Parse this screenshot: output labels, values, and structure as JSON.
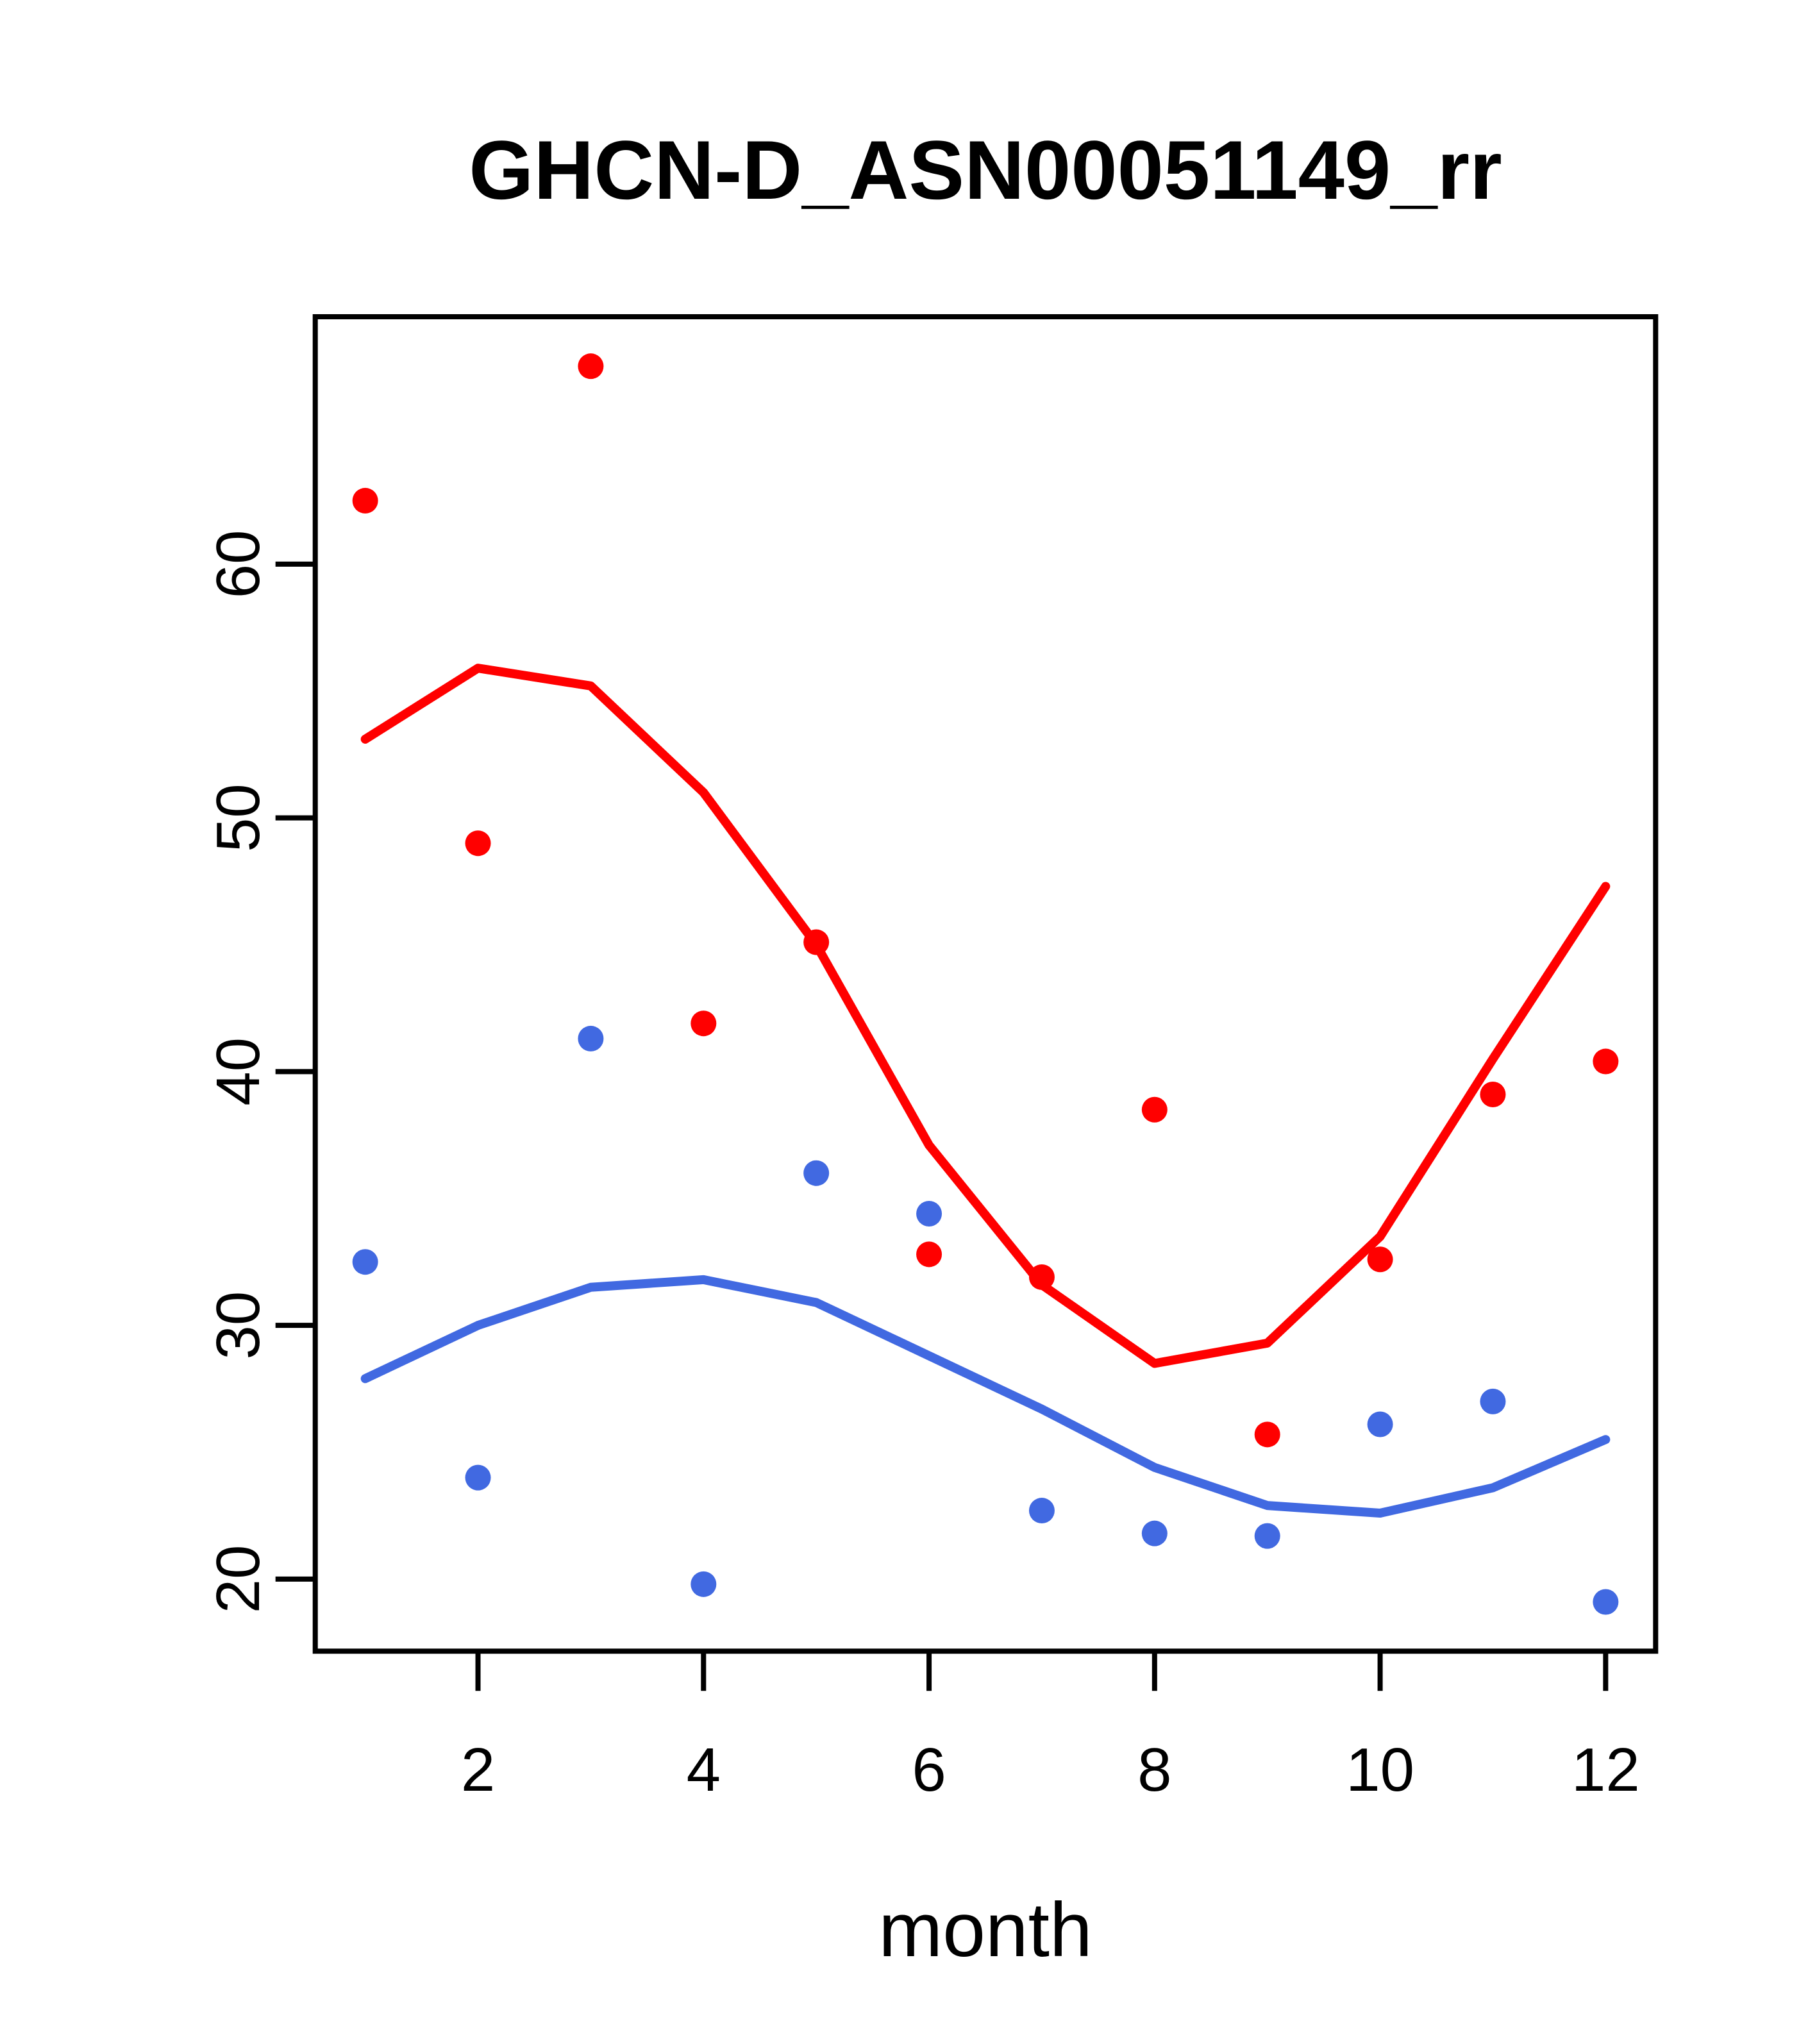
{
  "title": "GHCN-D_ASN00051149_rr",
  "colors": {
    "red_series": "#FF0000",
    "blue_series": "#4169E1",
    "axis": "#000000",
    "background": "#FFFFFF"
  },
  "chart_data": {
    "type": "scatter",
    "title": "GHCN-D_ASN00051149_rr",
    "xlabel": "month",
    "ylabel": "",
    "x": [
      1,
      2,
      3,
      4,
      5,
      6,
      7,
      8,
      9,
      10,
      11,
      12
    ],
    "xlim": [
      0.5568,
      12.4432
    ],
    "ylim": [
      17.16,
      69.75
    ],
    "x_ticks": [
      2,
      4,
      6,
      8,
      10,
      12
    ],
    "y_ticks": [
      20,
      30,
      40,
      50,
      60
    ],
    "grid": false,
    "legend_position": "none",
    "series": [
      {
        "name": "red-points",
        "kind": "points",
        "color": "#FF0000",
        "values": [
          62.5,
          49.0,
          67.8,
          41.9,
          45.1,
          32.8,
          31.9,
          38.5,
          25.7,
          32.6,
          39.1,
          40.4
        ]
      },
      {
        "name": "blue-points",
        "kind": "points",
        "color": "#4169E1",
        "values": [
          32.5,
          24.0,
          41.3,
          19.8,
          36.0,
          34.4,
          22.7,
          21.8,
          21.7,
          26.1,
          27.0,
          19.1
        ]
      },
      {
        "name": "red-smooth-line",
        "kind": "line",
        "color": "#FF0000",
        "values": [
          53.1,
          55.9,
          55.2,
          51.0,
          45.0,
          37.1,
          31.6,
          28.5,
          29.3,
          33.5,
          40.5,
          47.3
        ]
      },
      {
        "name": "blue-smooth-line",
        "kind": "line",
        "color": "#4169E1",
        "values": [
          27.9,
          30.0,
          31.5,
          31.8,
          30.9,
          28.8,
          26.7,
          24.4,
          22.9,
          22.6,
          23.6,
          25.5
        ]
      }
    ]
  }
}
